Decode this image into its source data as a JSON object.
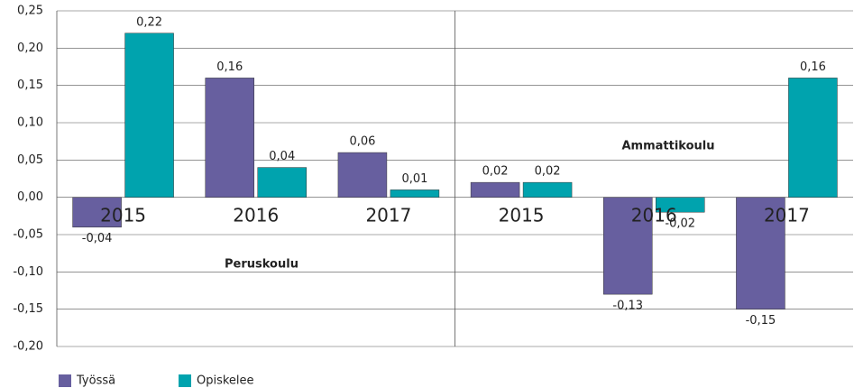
{
  "chart_data": {
    "type": "bar",
    "categories": [
      "2015",
      "2016",
      "2017",
      "2015",
      "2016",
      "2017"
    ],
    "groups": [
      "Peruskoulu",
      "Ammattikoulu"
    ],
    "series": [
      {
        "name": "Työssä",
        "color": "#675f9f",
        "values": [
          -0.04,
          0.16,
          0.06,
          0.02,
          -0.13,
          -0.15
        ],
        "value_labels": [
          "-0,04",
          "0,16",
          "0,06",
          "0,02",
          "-0,13",
          "-0,15"
        ]
      },
      {
        "name": "Opiskelee",
        "color": "#00a3ae",
        "values": [
          0.22,
          0.04,
          0.01,
          0.02,
          -0.02,
          0.16
        ],
        "value_labels": [
          "0,22",
          "0,04",
          "0,01",
          "0,02",
          "-0,02",
          "0,16"
        ]
      }
    ],
    "ylim": [
      -0.2,
      0.25
    ],
    "yticks": [
      {
        "value": 0.25,
        "label": "0,25"
      },
      {
        "value": 0.2,
        "label": "0,20"
      },
      {
        "value": 0.15,
        "label": "0,15"
      },
      {
        "value": 0.1,
        "label": "0,10"
      },
      {
        "value": 0.05,
        "label": "0,05"
      },
      {
        "value": 0,
        "label": "0,00"
      },
      {
        "value": -0.05,
        "label": "-0,05"
      },
      {
        "value": -0.1,
        "label": "-0,10"
      },
      {
        "value": -0.15,
        "label": "-0,15"
      },
      {
        "value": -0.2,
        "label": "-0,20"
      }
    ],
    "grid": true,
    "legend": "bottom"
  }
}
